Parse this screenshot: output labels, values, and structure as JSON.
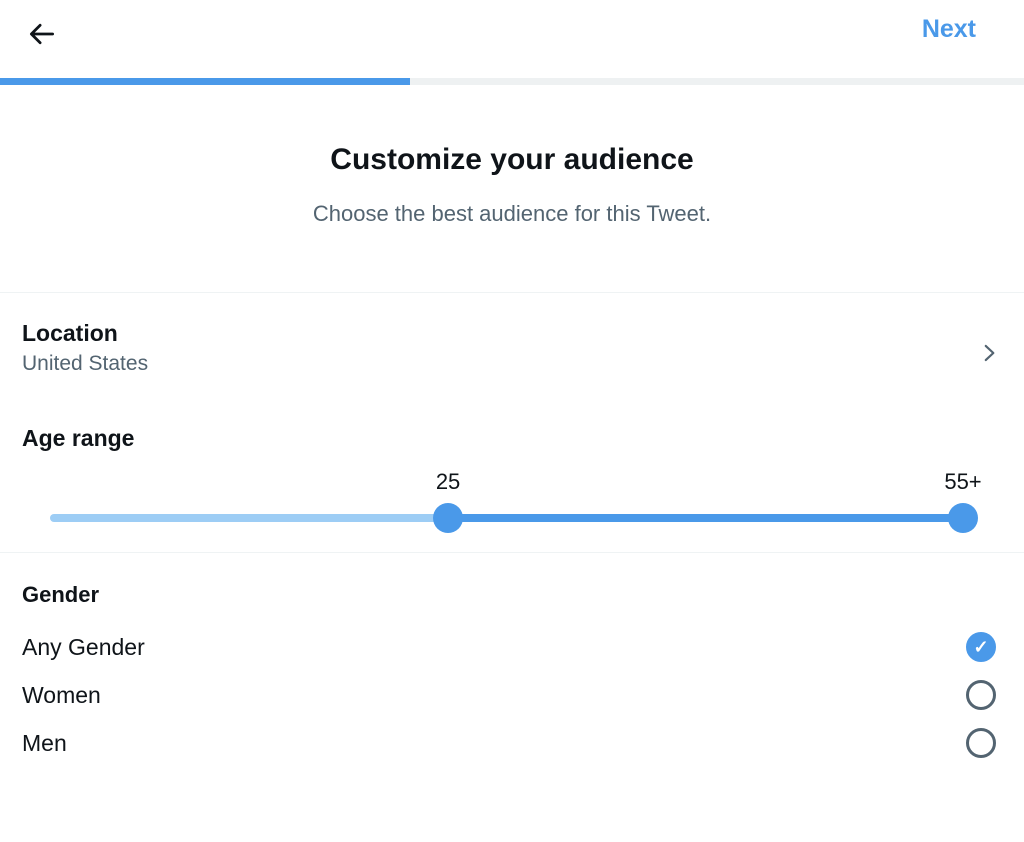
{
  "header": {
    "back_icon": "arrow-left",
    "next_label": "Next",
    "progress_percent": 40
  },
  "intro": {
    "title": "Customize your audience",
    "subtitle": "Choose the best audience for this Tweet."
  },
  "location": {
    "label": "Location",
    "value": "United States",
    "chevron_icon": "chevron-right"
  },
  "age_range": {
    "label": "Age range",
    "min_label": "25",
    "max_label": "55+",
    "min_percent": 43.6,
    "max_percent": 100
  },
  "gender": {
    "label": "Gender",
    "options": [
      {
        "label": "Any Gender",
        "selected": true
      },
      {
        "label": "Women",
        "selected": false
      },
      {
        "label": "Men",
        "selected": false
      }
    ]
  },
  "colors": {
    "accent_blue": "#4a99e9",
    "track_light_blue": "#9dcdf5",
    "progress_track_gray": "#eef1f2",
    "text_dark": "#0f1419",
    "text_gray": "#536471",
    "divider": "#eff3f4"
  }
}
